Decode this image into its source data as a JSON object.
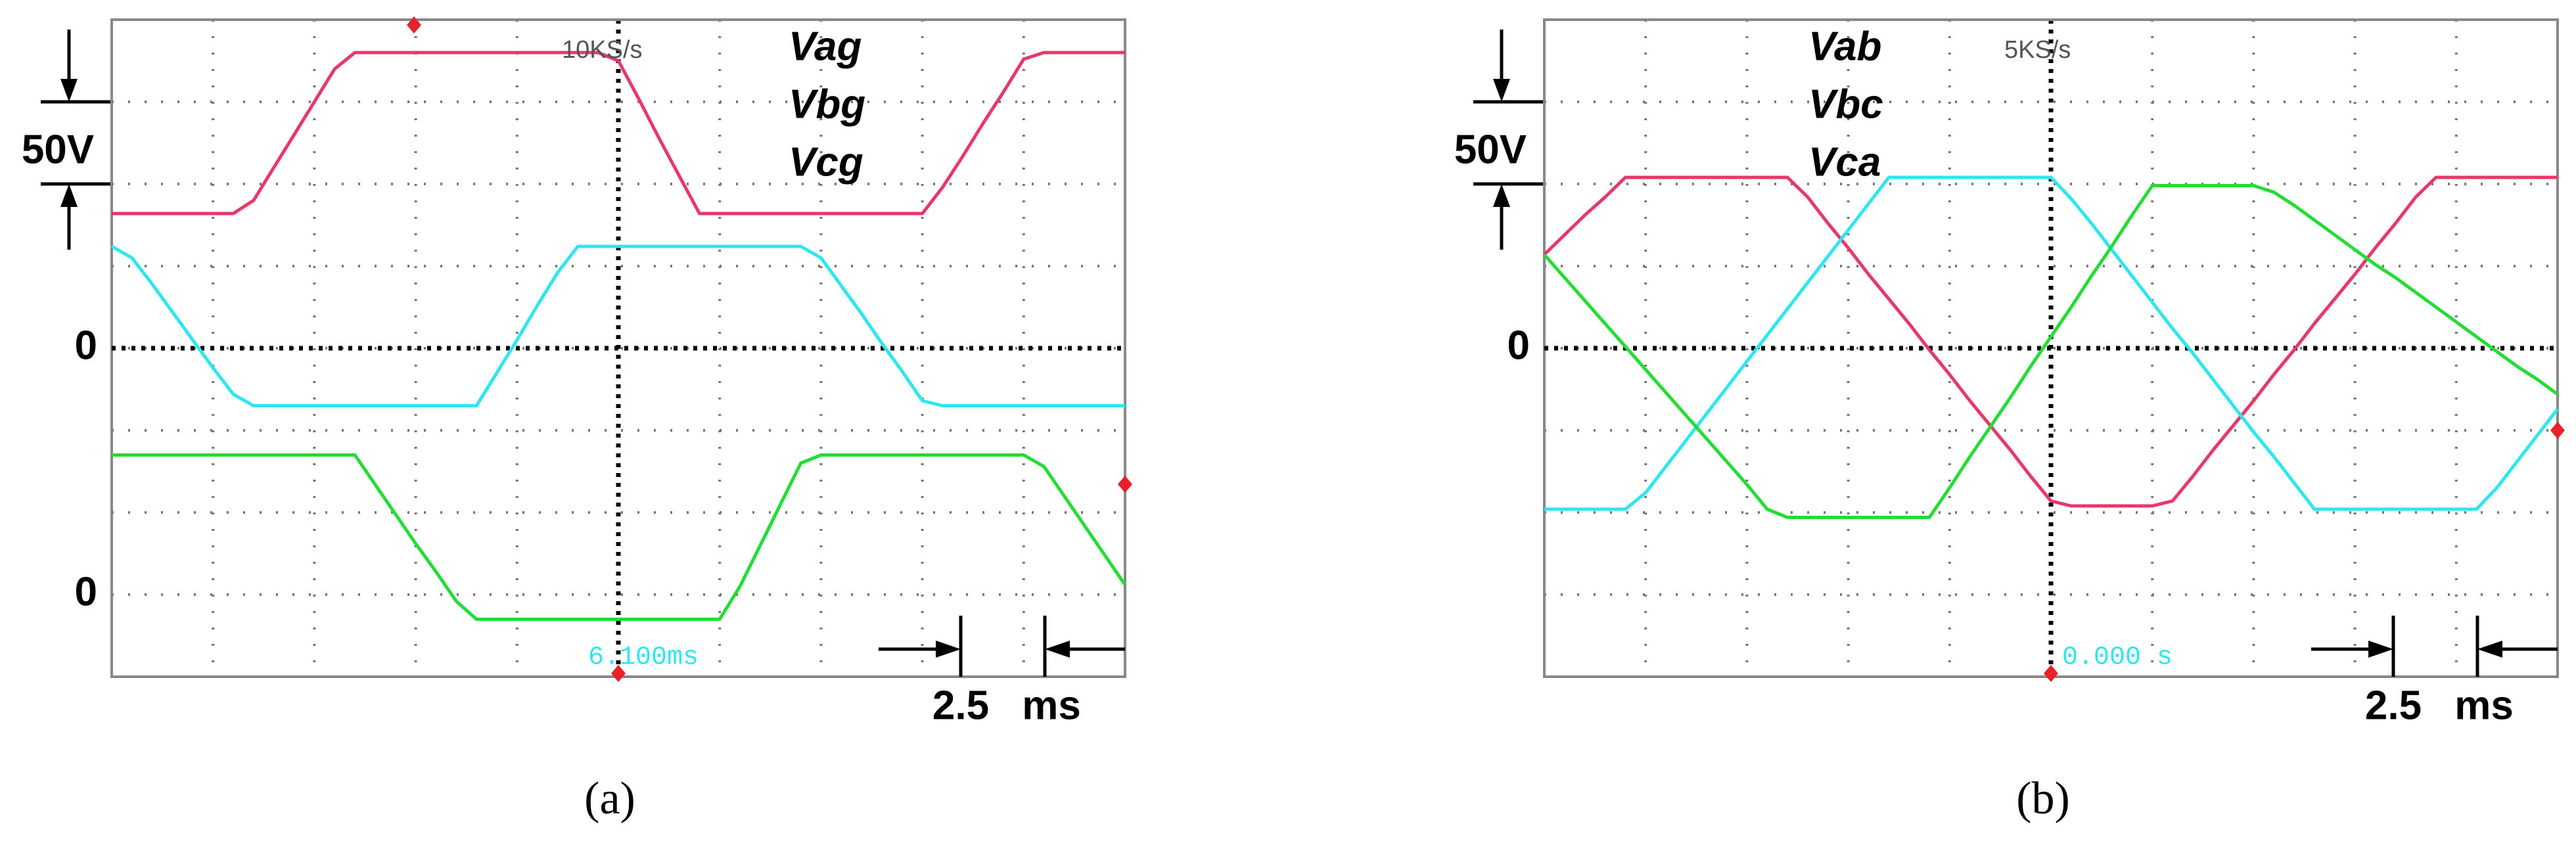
{
  "chart_data": [
    {
      "type": "line",
      "caption": "(a)",
      "sample_rate": "10KS/s",
      "trigger_time": "6.100ms",
      "volts_per_div_label": "50V",
      "time_per_div": "2.5",
      "time_unit": "ms",
      "x": [
        0,
        0.5,
        1,
        1.5,
        2,
        2.5,
        3,
        3.5,
        4,
        4.5,
        5,
        5.5,
        6,
        6.5,
        7,
        7.5,
        8,
        8.5,
        9,
        9.5,
        10,
        10.5,
        11,
        11.5,
        12,
        12.5,
        13,
        13.5,
        14,
        14.5,
        15,
        15.5,
        16,
        16.5,
        17,
        17.5,
        18,
        18.5,
        19,
        19.5,
        20,
        20.5,
        21,
        21.5,
        22,
        22.5,
        23,
        23.5,
        24,
        24.5,
        25
      ],
      "xlim": [
        0,
        25
      ],
      "ylim": [
        -200,
        200
      ],
      "yticks": [
        0
      ],
      "y2lim": [
        -50,
        350
      ],
      "y2ticks": [
        0
      ],
      "series": [
        {
          "name": "Vag",
          "color": "#e8386a",
          "values": [
            82,
            82,
            82,
            82,
            82,
            82,
            82,
            90,
            110,
            130,
            150,
            170,
            180,
            180,
            180,
            180,
            180,
            180,
            180,
            180,
            180,
            180,
            180,
            180,
            180,
            175,
            152,
            128,
            105,
            82,
            82,
            82,
            82,
            82,
            82,
            82,
            82,
            82,
            82,
            82,
            82,
            98,
            117,
            137,
            156,
            176,
            180,
            180,
            180,
            180,
            180
          ]
        },
        {
          "name": "Vbg",
          "color": "#2ee6ef",
          "values": [
            62,
            55,
            39,
            22,
            5,
            -12,
            -28,
            -35,
            -35,
            -35,
            -35,
            -35,
            -35,
            -35,
            -35,
            -35,
            -35,
            -35,
            -35,
            -15,
            5,
            26,
            46,
            62,
            62,
            62,
            62,
            62,
            62,
            62,
            62,
            62,
            62,
            62,
            62,
            55,
            38,
            21,
            3,
            -14,
            -32,
            -35,
            -35,
            -35,
            -35,
            -35,
            -35,
            -35,
            -35,
            -35,
            -35
          ]
        },
        {
          "name": "Vcg",
          "color": "#22dd33",
          "axis": "y2",
          "values": [
            85,
            85,
            85,
            85,
            85,
            85,
            85,
            85,
            85,
            85,
            85,
            85,
            85,
            67,
            49,
            31,
            14,
            -4,
            -15,
            -15,
            -15,
            -15,
            -15,
            -15,
            -15,
            -15,
            -15,
            -15,
            -15,
            -15,
            -15,
            5,
            30,
            55,
            80,
            85,
            85,
            85,
            85,
            85,
            85,
            85,
            85,
            85,
            85,
            85,
            78,
            60,
            42,
            24,
            6
          ]
        }
      ]
    },
    {
      "type": "line",
      "caption": "(b)",
      "sample_rate": "5KS/s",
      "trigger_time": "0.000 s",
      "volts_per_div_label": "50V",
      "time_per_div": "2.5",
      "time_unit": "ms",
      "x": [
        0,
        0.5,
        1,
        1.5,
        2,
        2.5,
        3,
        3.5,
        4,
        4.5,
        5,
        5.5,
        6,
        6.5,
        7,
        7.5,
        8,
        8.5,
        9,
        9.5,
        10,
        10.5,
        11,
        11.5,
        12,
        12.5,
        13,
        13.5,
        14,
        14.5,
        15,
        15.5,
        16,
        16.5,
        17,
        17.5,
        18,
        18.5,
        19,
        19.5,
        20,
        20.5,
        21,
        21.5,
        22,
        22.5,
        23,
        23.5,
        24,
        24.5,
        25
      ],
      "xlim": [
        0,
        25
      ],
      "ylim": [
        -200,
        200
      ],
      "yticks": [
        0
      ],
      "series": [
        {
          "name": "Vab",
          "color": "#e8386a",
          "values": [
            57,
            69,
            81,
            92,
            104,
            104,
            104,
            104,
            104,
            104,
            104,
            104,
            104,
            92,
            76,
            61,
            45,
            30,
            15,
            -1,
            -16,
            -32,
            -47,
            -62,
            -78,
            -93,
            -96,
            -96,
            -96,
            -96,
            -96,
            -93,
            -78,
            -62,
            -47,
            -32,
            -16,
            -1,
            15,
            30,
            45,
            61,
            76,
            92,
            104,
            104,
            104,
            104,
            104,
            104,
            104
          ]
        },
        {
          "name": "Vbc",
          "color": "#2ee6ef",
          "values": [
            -98,
            -98,
            -98,
            -98,
            -98,
            -88,
            -72,
            -56,
            -40,
            -24,
            -8,
            8,
            24,
            40,
            56,
            72,
            88,
            104,
            104,
            104,
            104,
            104,
            104,
            104,
            104,
            104,
            91,
            76,
            60,
            44,
            28,
            12,
            -3,
            -19,
            -35,
            -51,
            -66,
            -82,
            -98,
            -98,
            -98,
            -98,
            -98,
            -98,
            -98,
            -98,
            -98,
            -85,
            -69,
            -53,
            -37
          ]
        },
        {
          "name": "Vca",
          "color": "#22dd33",
          "values": [
            57,
            43,
            29,
            15,
            1,
            -13,
            -27,
            -41,
            -55,
            -69,
            -83,
            -98,
            -103,
            -103,
            -103,
            -103,
            -103,
            -103,
            -103,
            -103,
            -85,
            -66,
            -48,
            -30,
            -11,
            7,
            25,
            44,
            62,
            81,
            99,
            99,
            99,
            99,
            99,
            99,
            95,
            87,
            78,
            69,
            60,
            51,
            43,
            34,
            25,
            16,
            7,
            -2,
            -11,
            -19,
            -28
          ]
        }
      ]
    }
  ]
}
